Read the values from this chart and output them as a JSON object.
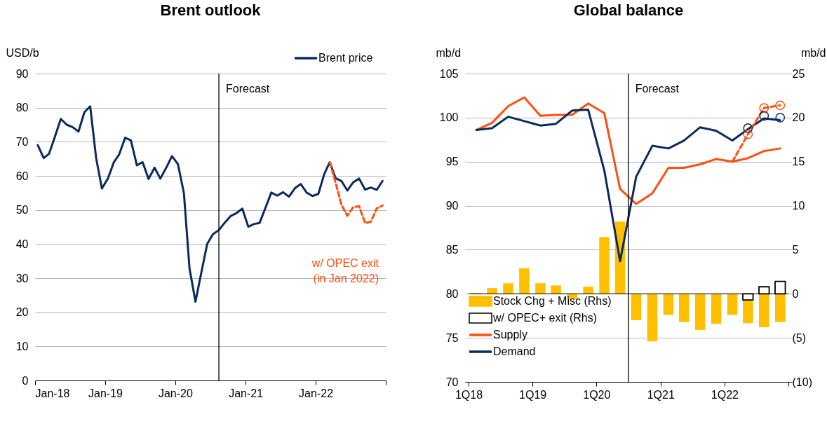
{
  "chart_data": [
    {
      "type": "line",
      "title": "Brent outlook",
      "ylabel": "USD/b",
      "x": [
        "2018-01-15",
        "2018-02-15",
        "2018-03-15",
        "2018-04-15",
        "2018-05-15",
        "2018-06-15",
        "2018-07-15",
        "2018-08-15",
        "2018-09-15",
        "2018-10-15",
        "2018-11-15",
        "2018-12-15",
        "2019-01-15",
        "2019-02-15",
        "2019-03-15",
        "2019-04-15",
        "2019-05-15",
        "2019-06-15",
        "2019-07-15",
        "2019-08-15",
        "2019-09-15",
        "2019-10-15",
        "2019-11-15",
        "2019-12-15",
        "2020-01-15",
        "2020-02-15",
        "2020-03-15",
        "2020-04-15",
        "2020-05-15",
        "2020-06-15",
        "2020-07-15",
        "2020-08-15",
        "2020-09-15",
        "2020-10-15",
        "2020-11-15",
        "2020-12-15",
        "2021-01-15",
        "2021-02-15",
        "2021-03-15",
        "2021-04-15",
        "2021-05-15",
        "2021-06-15",
        "2021-07-15",
        "2021-08-15",
        "2021-09-15",
        "2021-10-15",
        "2021-11-15",
        "2021-12-15",
        "2022-01-15",
        "2022-02-15",
        "2022-03-15",
        "2022-04-15",
        "2022-05-15",
        "2022-06-15",
        "2022-07-15",
        "2022-08-15",
        "2022-09-15",
        "2022-10-15",
        "2022-11-15",
        "2022-12-15"
      ],
      "xlim": [
        "2018-01-01",
        "2023-01-01"
      ],
      "xticks": [
        {
          "value": "2018-01-01",
          "label": "Jan-18"
        },
        {
          "value": "2019-01-01",
          "label": "Jan-19"
        },
        {
          "value": "2020-01-01",
          "label": "Jan-20"
        },
        {
          "value": "2021-01-01",
          "label": "Jan-21"
        },
        {
          "value": "2022-01-01",
          "label": "Jan-22"
        },
        {
          "value": "2023-01-01",
          "label": null
        }
      ],
      "ylim": [
        0,
        90
      ],
      "yticks": [
        0,
        10,
        20,
        30,
        40,
        50,
        60,
        70,
        80,
        90
      ],
      "grid": "y",
      "legend": "top right",
      "marker": "none",
      "series": [
        {
          "name": "Brent price",
          "color": "#0b2a5c",
          "values": [
            69,
            65.2,
            66.5,
            71.6,
            76.7,
            75,
            74.3,
            73,
            78.7,
            80.4,
            65.2,
            56.3,
            59.2,
            64,
            66.3,
            71.2,
            70.4,
            63.1,
            64,
            59.1,
            62.4,
            59.2,
            62.4,
            65.8,
            63.4,
            54.9,
            32.9,
            23.1,
            31.5,
            40,
            42.9,
            44.1,
            46.3,
            48.2,
            49.1,
            50.4,
            45.1,
            45.9,
            46.2,
            50.7,
            55.1,
            54.2,
            55.2,
            53.9,
            56.4,
            57.6,
            55.1,
            54.1,
            54.7,
            60.6,
            64,
            59.3,
            58.5,
            55.7,
            58.1,
            59.2,
            56,
            56.6,
            55.9,
            58.5
          ]
        },
        {
          "color": "#ff4e12",
          "line_style": "dashed",
          "values": [
            null,
            null,
            null,
            null,
            null,
            null,
            null,
            null,
            null,
            null,
            null,
            null,
            null,
            null,
            null,
            null,
            null,
            null,
            null,
            null,
            null,
            null,
            null,
            null,
            null,
            null,
            null,
            null,
            null,
            null,
            null,
            null,
            null,
            null,
            null,
            null,
            null,
            null,
            null,
            null,
            null,
            null,
            null,
            null,
            null,
            null,
            null,
            null,
            null,
            null,
            64,
            58,
            51.5,
            48.3,
            50.8,
            51.1,
            46.2,
            46.5,
            50.5,
            51.3
          ]
        }
      ],
      "ref_lines": [
        {
          "axis": "x",
          "value": "2020-08-15",
          "label": "Forecast"
        }
      ],
      "annotations": [
        "w/ OPEC exit\n(in Jan 2022)"
      ]
    },
    {
      "type": "line",
      "title": "Global balance",
      "ylabel": "mb/d",
      "y2label": "mb/d",
      "x": [
        "2018-02-15",
        "2018-05-15",
        "2018-08-15",
        "2018-11-15",
        "2019-02-15",
        "2019-05-15",
        "2019-08-15",
        "2019-11-15",
        "2020-02-15",
        "2020-05-15",
        "2020-08-15",
        "2020-11-15",
        "2021-02-15",
        "2021-05-15",
        "2021-08-15",
        "2021-11-15",
        "2022-02-15",
        "2022-05-15",
        "2022-08-15",
        "2022-11-15"
      ],
      "xlim": [
        "2018-01-01",
        "2023-01-01"
      ],
      "xticks": [
        {
          "value": "2018-01-01",
          "label": "1Q18"
        },
        {
          "value": "2019-01-01",
          "label": "1Q19"
        },
        {
          "value": "2020-01-01",
          "label": "1Q20"
        },
        {
          "value": "2021-01-01",
          "label": "1Q21"
        },
        {
          "value": "2022-01-01",
          "label": "1Q22"
        },
        {
          "value": "2023-01-01",
          "label": null
        }
      ],
      "ylim": [
        70,
        105
      ],
      "yticks": [
        70,
        75,
        80,
        85,
        90,
        95,
        100,
        105
      ],
      "y2lim": [
        -10,
        25
      ],
      "y2ticks": [
        {
          "value": -10,
          "label": "(10)"
        },
        {
          "value": -5,
          "label": "(5)"
        },
        0,
        5,
        10,
        15,
        20,
        25
      ],
      "grid": "y",
      "legend": "bottom left",
      "marker": "none",
      "series": [
        {
          "name": "Stock Chg + Misc (Rhs)",
          "type": "bar",
          "axis": "y2",
          "color": "#ffc000",
          "values": [
            0.1,
            0.65,
            1.2,
            2.9,
            1.2,
            0.95,
            -0.6,
            0.8,
            6.45,
            8.2,
            -3,
            -5.4,
            -2.4,
            -3.2,
            -4.1,
            -3.4,
            -2.4,
            -3.35,
            -3.8,
            -3.2
          ]
        },
        {
          "name": "w/ OPEC+ exit (Rhs)",
          "type": "bar",
          "axis": "y2",
          "color": "#000000",
          "values": [
            null,
            null,
            null,
            null,
            null,
            null,
            null,
            null,
            null,
            null,
            null,
            null,
            null,
            null,
            null,
            null,
            null,
            -0.7,
            0.8,
            1.4
          ]
        },
        {
          "name": "Supply",
          "color": "#ff4e12",
          "values": [
            98.6,
            99.4,
            101.3,
            102.3,
            100.2,
            100.3,
            100.3,
            101.6,
            100.5,
            91.9,
            90.2,
            91.4,
            94.3,
            94.3,
            94.7,
            95.3,
            95,
            95.4,
            96.2,
            96.5
          ]
        },
        {
          "name": "Demand",
          "color": "#0b2a5c",
          "values": [
            98.6,
            98.8,
            100.1,
            99.6,
            99.1,
            99.3,
            100.8,
            100.9,
            94,
            83.7,
            93.3,
            96.8,
            96.5,
            97.4,
            98.9,
            98.5,
            97.4,
            98.7,
            99.9,
            99.7
          ]
        },
        {
          "color": "#ff4e12",
          "line_style": "dashed",
          "values": [
            null,
            null,
            null,
            null,
            null,
            null,
            null,
            null,
            null,
            null,
            null,
            null,
            null,
            null,
            null,
            null,
            95,
            98.1,
            101.1,
            101.4
          ]
        },
        {
          "type": "scatter",
          "marker": "circle",
          "color": "#ff4e12",
          "values": [
            null,
            null,
            null,
            null,
            null,
            null,
            null,
            null,
            null,
            null,
            null,
            null,
            null,
            null,
            null,
            null,
            null,
            98.1,
            101.1,
            101.4
          ]
        },
        {
          "type": "scatter",
          "marker": "circle",
          "color": "#0b2a5c",
          "values": [
            null,
            null,
            null,
            null,
            null,
            null,
            null,
            null,
            null,
            null,
            null,
            null,
            null,
            null,
            null,
            null,
            null,
            98.8,
            100.2,
            100
          ]
        }
      ],
      "ref_lines": [
        {
          "axis": "x",
          "value": "2020-07-01",
          "label": "Forecast"
        },
        {
          "axis": "y2",
          "value": 0
        }
      ]
    }
  ]
}
